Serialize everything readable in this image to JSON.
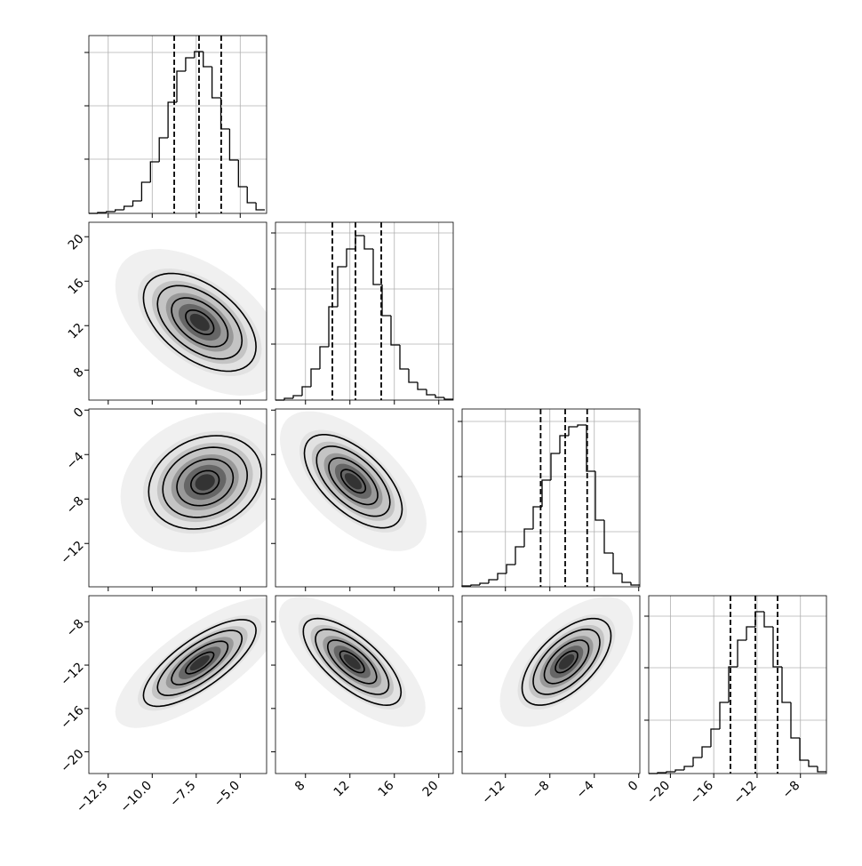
{
  "chart_data": {
    "type": "corner",
    "parameters": [
      {
        "xlim": [
          -13.6,
          -3.5
        ],
        "xticks": [
          {
            "value": -12.5,
            "label": "−12.5"
          },
          {
            "value": -10,
            "label": "−10.0"
          },
          {
            "value": -7.5,
            "label": "−7.5"
          },
          {
            "value": -5,
            "label": "−5.0"
          }
        ],
        "bins": [
          -13.6,
          -13.1,
          -12.6,
          -12.1,
          -11.6,
          -11.1,
          -10.6,
          -10.1,
          -9.6,
          -9.1,
          -8.6,
          -8.1,
          -7.6,
          -7.1,
          -6.6,
          -6.1,
          -5.6,
          -5.1,
          -4.6,
          -4.1,
          -3.6
        ],
        "counts": [
          0,
          1,
          2,
          4,
          8,
          14,
          35,
          58,
          85,
          125,
          160,
          175,
          182,
          165,
          130,
          95,
          60,
          30,
          12,
          4
        ],
        "hist_ylim": [
          0,
          200
        ],
        "hist_yticks": [
          61,
          121,
          181
        ],
        "quantiles": [
          -8.75,
          -7.34,
          -6.08
        ]
      },
      {
        "xlim": [
          5.3,
          21.3
        ],
        "xticks": [
          8,
          12,
          16,
          20
        ],
        "bins": [
          5.3,
          6.1,
          6.9,
          7.7,
          8.5,
          9.3,
          10.1,
          10.9,
          11.7,
          12.5,
          13.3,
          14.1,
          14.9,
          15.7,
          16.5,
          17.3,
          18.1,
          18.9,
          19.7,
          20.5,
          21.3
        ],
        "counts": [
          0,
          2,
          5,
          15,
          35,
          60,
          105,
          150,
          170,
          185,
          170,
          130,
          95,
          62,
          35,
          20,
          12,
          6,
          3,
          1
        ],
        "hist_ylim": [
          0,
          200
        ],
        "hist_yticks": [
          63,
          125,
          188
        ],
        "quantiles": [
          10.42,
          12.5,
          14.82
        ]
      },
      {
        "xlim": [
          -15.9,
          0.1
        ],
        "xticks": [
          {
            "value": -12,
            "label": "−12"
          },
          {
            "value": -8,
            "label": "−8"
          },
          {
            "value": -4,
            "label": "−4"
          },
          0
        ],
        "bins": [
          -15.9,
          -15.1,
          -14.3,
          -13.5,
          -12.7,
          -11.9,
          -11.1,
          -10.3,
          -9.5,
          -8.7,
          -7.9,
          -7.1,
          -6.3,
          -5.5,
          -4.7,
          -3.9,
          -3.1,
          -2.3,
          -1.5,
          -0.7,
          0.1
        ],
        "counts": [
          1,
          2,
          4,
          8,
          15,
          25,
          45,
          65,
          90,
          120,
          150,
          170,
          180,
          182,
          130,
          75,
          38,
          15,
          5,
          2
        ],
        "hist_ylim": [
          0,
          200
        ],
        "hist_yticks": [
          62,
          124,
          186
        ],
        "quantiles": [
          -8.83,
          -6.62,
          -4.64
        ]
      },
      {
        "xlim": [
          -22,
          -5.6
        ],
        "xticks": [
          {
            "value": -20,
            "label": "−20"
          },
          {
            "value": -16,
            "label": "−16"
          },
          {
            "value": -12,
            "label": "−12"
          },
          {
            "value": -8,
            "label": "−8"
          }
        ],
        "bins": [
          -22,
          -21.18,
          -20.36,
          -19.54,
          -18.72,
          -17.9,
          -17.08,
          -16.26,
          -15.44,
          -14.62,
          -13.8,
          -12.98,
          -12.16,
          -11.34,
          -10.52,
          -9.7,
          -8.88,
          -8.06,
          -7.24,
          -6.42,
          -5.6
        ],
        "counts": [
          0,
          1,
          2,
          4,
          8,
          18,
          30,
          50,
          80,
          120,
          150,
          165,
          182,
          165,
          120,
          80,
          40,
          15,
          8,
          2
        ],
        "hist_ylim": [
          0,
          200
        ],
        "hist_yticks": [
          60,
          119,
          177
        ],
        "quantiles": [
          -14.46,
          -12.16,
          -10.11
        ]
      }
    ],
    "pairs": [
      {
        "center": [
          -7.3,
          12.3
        ],
        "sigma": [
          1.6,
          2.2
        ],
        "rho": -0.5
      },
      {
        "center": [
          -7.0,
          -6.5
        ],
        "sigma": [
          1.6,
          2.1
        ],
        "rho": 0.2
      },
      {
        "center": [
          12.3,
          -6.4
        ],
        "sigma": [
          2.2,
          2.1
        ],
        "rho": -0.6
      },
      {
        "center": [
          -7.3,
          -11.8
        ],
        "sigma": [
          1.6,
          2.0
        ],
        "rho": 0.75
      },
      {
        "center": [
          12.2,
          -11.7
        ],
        "sigma": [
          2.2,
          2.0
        ],
        "rho": -0.7
      },
      {
        "center": [
          -6.5,
          -11.7
        ],
        "sigma": [
          2.0,
          2.0
        ],
        "rho": 0.6
      }
    ]
  }
}
